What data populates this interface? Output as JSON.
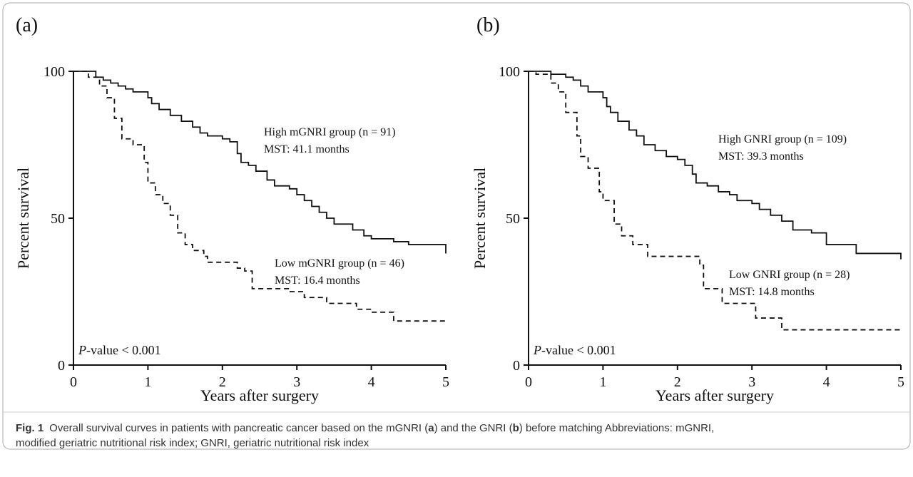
{
  "chart_data": [
    {
      "type": "line",
      "panel": "(a)",
      "ylabel": "Percent survival",
      "xlabel": "Years after surgery",
      "xlim": [
        0,
        5
      ],
      "ylim": [
        0,
        100
      ],
      "xticks": [
        0,
        1,
        2,
        3,
        4,
        5
      ],
      "yticks": [
        0,
        50,
        100
      ],
      "step": true,
      "p_value": {
        "italic": "P",
        "text": "-value < 0.001"
      },
      "series": [
        {
          "name": "High mGNRI group (n = 91)",
          "mst": "MST: 41.1 months",
          "color": "#111111",
          "dashed": false,
          "x": [
            0,
            0.3,
            0.4,
            0.5,
            0.6,
            0.7,
            0.8,
            1.0,
            1.05,
            1.15,
            1.3,
            1.45,
            1.6,
            1.7,
            1.8,
            2.0,
            2.1,
            2.2,
            2.25,
            2.35,
            2.45,
            2.6,
            2.7,
            2.9,
            3.0,
            3.1,
            3.2,
            3.3,
            3.4,
            3.5,
            3.75,
            3.9,
            4.0,
            4.3,
            4.5,
            4.95,
            5.0
          ],
          "values": [
            100,
            98,
            97,
            96,
            95,
            94,
            93,
            91,
            89,
            87,
            85,
            83,
            81,
            79,
            78,
            77,
            76,
            72,
            69,
            68,
            66,
            63,
            61,
            60,
            58,
            56,
            54,
            52,
            50,
            48,
            46,
            44,
            43,
            42,
            41,
            41,
            38
          ]
        },
        {
          "name": "Low mGNRI group (n = 46)",
          "mst": "MST: 16.4 months",
          "color": "#111111",
          "dashed": true,
          "x": [
            0,
            0.2,
            0.35,
            0.45,
            0.55,
            0.65,
            0.8,
            0.95,
            1.0,
            1.1,
            1.2,
            1.3,
            1.4,
            1.5,
            1.6,
            1.75,
            1.8,
            2.2,
            2.3,
            2.4,
            2.9,
            3.1,
            3.4,
            3.8,
            4.0,
            4.3,
            5.0
          ],
          "values": [
            100,
            98,
            95,
            91,
            84,
            77,
            75,
            69,
            62,
            58,
            55,
            51,
            45,
            41,
            39,
            37,
            35,
            33,
            32,
            26,
            25,
            23,
            21,
            19,
            18,
            15,
            15
          ]
        }
      ]
    },
    {
      "type": "line",
      "panel": "(b)",
      "ylabel": "Percent survival",
      "xlabel": "Years after surgery",
      "xlim": [
        0,
        5
      ],
      "ylim": [
        0,
        100
      ],
      "xticks": [
        0,
        1,
        2,
        3,
        4,
        5
      ],
      "yticks": [
        0,
        50,
        100
      ],
      "step": true,
      "p_value": {
        "italic": "P",
        "text": "-value < 0.001"
      },
      "series": [
        {
          "name": "High GNRI group (n = 109)",
          "mst": "MST: 39.3 months",
          "color": "#111111",
          "dashed": false,
          "x": [
            0,
            0.3,
            0.5,
            0.6,
            0.7,
            0.8,
            1.0,
            1.05,
            1.1,
            1.2,
            1.35,
            1.45,
            1.55,
            1.7,
            1.85,
            2.0,
            2.1,
            2.2,
            2.25,
            2.4,
            2.55,
            2.7,
            2.8,
            3.0,
            3.1,
            3.25,
            3.4,
            3.55,
            3.8,
            4.0,
            4.4,
            4.95,
            5.0
          ],
          "values": [
            100,
            99,
            98,
            97,
            95,
            93,
            91,
            88,
            86,
            83,
            80,
            78,
            75,
            73,
            71,
            70,
            68,
            65,
            62,
            61,
            59,
            58,
            56,
            55,
            53,
            51,
            49,
            46,
            45,
            41,
            38,
            38,
            36
          ]
        },
        {
          "name": "Low GNRI group (n = 28)",
          "mst": "MST: 14.8 months",
          "color": "#111111",
          "dashed": true,
          "x": [
            0,
            0.1,
            0.3,
            0.4,
            0.5,
            0.65,
            0.7,
            0.8,
            0.95,
            1.0,
            1.15,
            1.25,
            1.4,
            1.6,
            2.3,
            2.35,
            2.6,
            3.0,
            3.05,
            3.4,
            5.0
          ],
          "values": [
            100,
            99,
            96,
            93,
            86,
            78,
            71,
            67,
            59,
            56,
            48,
            44,
            41,
            37,
            34,
            26,
            21,
            21,
            16,
            12,
            12
          ]
        }
      ]
    }
  ],
  "caption": {
    "label": "Fig. 1",
    "parts": [
      "Overall survival curves in patients with pancreatic cancer based on the mGNRI (",
      "a",
      ") and the GNRI (",
      "b",
      ") before matching Abbreviations: mGNRI,"
    ],
    "line2": "modified geriatric nutritional risk index; GNRI, geriatric nutritional risk index"
  }
}
